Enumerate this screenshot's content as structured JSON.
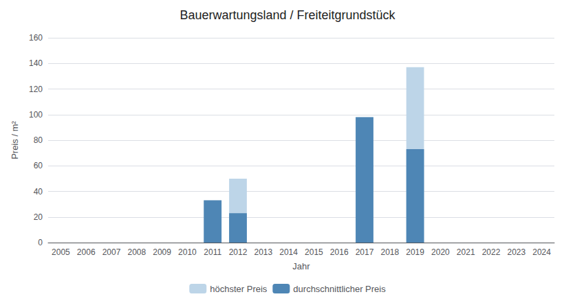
{
  "chart_data": {
    "type": "bar",
    "title": "Bauerwartungsland / Freiteitgrundstück",
    "xlabel": "Jahr",
    "ylabel": "Preis / m²",
    "categories": [
      "2005",
      "2006",
      "2007",
      "2008",
      "2009",
      "2010",
      "2011",
      "2012",
      "2013",
      "2014",
      "2015",
      "2016",
      "2017",
      "2018",
      "2019",
      "2020",
      "2021",
      "2022",
      "2023",
      "2024"
    ],
    "series": [
      {
        "name": "höchster Preis",
        "color": "#bdd5e8",
        "values": [
          null,
          null,
          null,
          null,
          null,
          null,
          33,
          50,
          null,
          null,
          null,
          null,
          98,
          null,
          137,
          null,
          null,
          null,
          null,
          null
        ]
      },
      {
        "name": "durchschnittlicher Preis",
        "color": "#4e86b5",
        "values": [
          null,
          null,
          null,
          null,
          null,
          null,
          33,
          23,
          null,
          null,
          null,
          null,
          98,
          null,
          73,
          null,
          null,
          null,
          null,
          null
        ]
      }
    ],
    "ylim": [
      0,
      160
    ],
    "yticks": [
      0,
      20,
      40,
      60,
      80,
      100,
      120,
      140,
      160
    ],
    "grid": true,
    "stacked": false,
    "legend": "bottom"
  }
}
